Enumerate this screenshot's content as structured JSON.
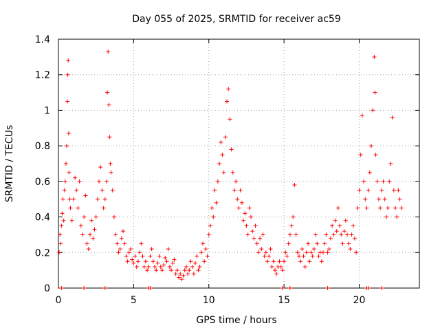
{
  "chart_data": {
    "type": "scatter",
    "title": "Day 055 of 2025, SRMTID for receiver ac59",
    "xlabel": "GPS time / hours",
    "ylabel": "SRMTID / TECUs",
    "xlim": [
      0,
      24
    ],
    "ylim": [
      0,
      1.4
    ],
    "xticks": [
      0,
      5,
      10,
      15,
      20
    ],
    "xtick_labels": [
      "0",
      "5",
      "10",
      "15",
      "20"
    ],
    "yticks": [
      0,
      0.2,
      0.4,
      0.6,
      0.8,
      1.0,
      1.2,
      1.4
    ],
    "ytick_labels": [
      "0",
      "0.2",
      "0.4",
      "0.6",
      "0.8",
      "1",
      "1.2",
      "1.4"
    ],
    "grid": true,
    "marker": "+",
    "color": "#ff0000",
    "series": [
      {
        "name": "SRMTID",
        "points": [
          [
            0.05,
            0.2
          ],
          [
            0.1,
            0.3
          ],
          [
            0.15,
            0.25
          ],
          [
            0.2,
            0.35
          ],
          [
            0.25,
            0.42
          ],
          [
            0.3,
            0.5
          ],
          [
            0.35,
            0.38
          ],
          [
            0.4,
            0.55
          ],
          [
            0.45,
            0.6
          ],
          [
            0.5,
            0.7
          ],
          [
            0.55,
            0.8
          ],
          [
            0.6,
            1.05
          ],
          [
            0.62,
            1.2
          ],
          [
            0.65,
            1.28
          ],
          [
            0.68,
            0.87
          ],
          [
            0.7,
            0.65
          ],
          [
            0.75,
            0.5
          ],
          [
            0.8,
            0.45
          ],
          [
            0.9,
            0.38
          ],
          [
            1.0,
            0.5
          ],
          [
            1.1,
            0.62
          ],
          [
            1.2,
            0.55
          ],
          [
            1.3,
            0.45
          ],
          [
            1.4,
            0.6
          ],
          [
            1.5,
            0.35
          ],
          [
            1.6,
            0.3
          ],
          [
            1.7,
            0.4
          ],
          [
            1.8,
            0.52
          ],
          [
            1.9,
            0.25
          ],
          [
            2.0,
            0.22
          ],
          [
            2.1,
            0.3
          ],
          [
            2.2,
            0.38
          ],
          [
            2.3,
            0.28
          ],
          [
            2.4,
            0.33
          ],
          [
            2.5,
            0.4
          ],
          [
            2.6,
            0.5
          ],
          [
            2.7,
            0.6
          ],
          [
            2.8,
            0.68
          ],
          [
            2.9,
            0.55
          ],
          [
            3.0,
            0.45
          ],
          [
            3.1,
            0.5
          ],
          [
            3.2,
            0.6
          ],
          [
            3.25,
            1.1
          ],
          [
            3.3,
            1.33
          ],
          [
            3.35,
            1.03
          ],
          [
            3.4,
            0.85
          ],
          [
            3.45,
            0.7
          ],
          [
            3.5,
            0.65
          ],
          [
            3.6,
            0.55
          ],
          [
            3.7,
            0.4
          ],
          [
            3.8,
            0.3
          ],
          [
            3.9,
            0.25
          ],
          [
            4.0,
            0.2
          ],
          [
            4.1,
            0.22
          ],
          [
            4.2,
            0.28
          ],
          [
            4.3,
            0.32
          ],
          [
            4.4,
            0.25
          ],
          [
            4.5,
            0.18
          ],
          [
            4.6,
            0.15
          ],
          [
            4.7,
            0.2
          ],
          [
            4.8,
            0.22
          ],
          [
            4.9,
            0.16
          ],
          [
            5.0,
            0.14
          ],
          [
            5.1,
            0.18
          ],
          [
            5.2,
            0.12
          ],
          [
            5.3,
            0.15
          ],
          [
            5.4,
            0.2
          ],
          [
            5.5,
            0.25
          ],
          [
            5.6,
            0.18
          ],
          [
            5.7,
            0.12
          ],
          [
            5.8,
            0.15
          ],
          [
            5.9,
            0.1
          ],
          [
            6.0,
            0.12
          ],
          [
            6.1,
            0.18
          ],
          [
            6.2,
            0.22
          ],
          [
            6.3,
            0.15
          ],
          [
            6.4,
            0.12
          ],
          [
            6.5,
            0.1
          ],
          [
            6.6,
            0.14
          ],
          [
            6.7,
            0.18
          ],
          [
            6.8,
            0.12
          ],
          [
            6.9,
            0.1
          ],
          [
            7.0,
            0.13
          ],
          [
            7.1,
            0.17
          ],
          [
            7.2,
            0.15
          ],
          [
            7.3,
            0.22
          ],
          [
            7.4,
            0.12
          ],
          [
            7.5,
            0.1
          ],
          [
            7.6,
            0.14
          ],
          [
            7.7,
            0.16
          ],
          [
            7.8,
            0.08
          ],
          [
            7.9,
            0.1
          ],
          [
            8.0,
            0.06
          ],
          [
            8.1,
            0.08
          ],
          [
            8.2,
            0.05
          ],
          [
            8.3,
            0.07
          ],
          [
            8.4,
            0.1
          ],
          [
            8.5,
            0.12
          ],
          [
            8.6,
            0.08
          ],
          [
            8.7,
            0.1
          ],
          [
            8.8,
            0.15
          ],
          [
            8.9,
            0.12
          ],
          [
            9.0,
            0.08
          ],
          [
            9.1,
            0.14
          ],
          [
            9.2,
            0.18
          ],
          [
            9.3,
            0.1
          ],
          [
            9.4,
            0.12
          ],
          [
            9.5,
            0.2
          ],
          [
            9.6,
            0.25
          ],
          [
            9.7,
            0.15
          ],
          [
            9.8,
            0.22
          ],
          [
            9.9,
            0.18
          ],
          [
            10.0,
            0.3
          ],
          [
            10.1,
            0.35
          ],
          [
            10.2,
            0.45
          ],
          [
            10.3,
            0.4
          ],
          [
            10.4,
            0.55
          ],
          [
            10.5,
            0.48
          ],
          [
            10.6,
            0.6
          ],
          [
            10.7,
            0.7
          ],
          [
            10.8,
            0.82
          ],
          [
            10.9,
            0.75
          ],
          [
            11.0,
            0.65
          ],
          [
            11.1,
            0.85
          ],
          [
            11.2,
            1.05
          ],
          [
            11.3,
            1.12
          ],
          [
            11.4,
            0.95
          ],
          [
            11.5,
            0.78
          ],
          [
            11.6,
            0.65
          ],
          [
            11.7,
            0.55
          ],
          [
            11.8,
            0.6
          ],
          [
            11.9,
            0.5
          ],
          [
            12.0,
            0.45
          ],
          [
            12.1,
            0.55
          ],
          [
            12.2,
            0.48
          ],
          [
            12.3,
            0.38
          ],
          [
            12.4,
            0.42
          ],
          [
            12.5,
            0.35
          ],
          [
            12.6,
            0.3
          ],
          [
            12.7,
            0.45
          ],
          [
            12.8,
            0.4
          ],
          [
            12.9,
            0.32
          ],
          [
            13.0,
            0.28
          ],
          [
            13.1,
            0.35
          ],
          [
            13.2,
            0.25
          ],
          [
            13.3,
            0.2
          ],
          [
            13.4,
            0.28
          ],
          [
            13.5,
            0.22
          ],
          [
            13.6,
            0.3
          ],
          [
            13.7,
            0.18
          ],
          [
            13.8,
            0.2
          ],
          [
            13.9,
            0.15
          ],
          [
            14.0,
            0.18
          ],
          [
            14.1,
            0.22
          ],
          [
            14.2,
            0.12
          ],
          [
            14.3,
            0.15
          ],
          [
            14.4,
            0.1
          ],
          [
            14.5,
            0.08
          ],
          [
            14.6,
            0.12
          ],
          [
            14.7,
            0.15
          ],
          [
            14.8,
            0.12
          ],
          [
            14.9,
            0.1
          ],
          [
            15.0,
            0.15
          ],
          [
            15.1,
            0.2
          ],
          [
            15.2,
            0.18
          ],
          [
            15.3,
            0.25
          ],
          [
            15.4,
            0.3
          ],
          [
            15.5,
            0.35
          ],
          [
            15.6,
            0.4
          ],
          [
            15.7,
            0.58
          ],
          [
            15.8,
            0.3
          ],
          [
            15.9,
            0.2
          ],
          [
            16.0,
            0.18
          ],
          [
            16.1,
            0.15
          ],
          [
            16.2,
            0.22
          ],
          [
            16.3,
            0.18
          ],
          [
            16.4,
            0.12
          ],
          [
            16.5,
            0.2
          ],
          [
            16.6,
            0.25
          ],
          [
            16.7,
            0.15
          ],
          [
            16.8,
            0.2
          ],
          [
            16.9,
            0.18
          ],
          [
            17.0,
            0.22
          ],
          [
            17.1,
            0.3
          ],
          [
            17.2,
            0.25
          ],
          [
            17.3,
            0.18
          ],
          [
            17.4,
            0.2
          ],
          [
            17.5,
            0.15
          ],
          [
            17.6,
            0.2
          ],
          [
            17.7,
            0.25
          ],
          [
            17.8,
            0.3
          ],
          [
            17.9,
            0.2
          ],
          [
            18.0,
            0.22
          ],
          [
            18.1,
            0.28
          ],
          [
            18.2,
            0.35
          ],
          [
            18.3,
            0.3
          ],
          [
            18.4,
            0.38
          ],
          [
            18.5,
            0.32
          ],
          [
            18.6,
            0.45
          ],
          [
            18.7,
            0.35
          ],
          [
            18.8,
            0.3
          ],
          [
            18.9,
            0.25
          ],
          [
            19.0,
            0.32
          ],
          [
            19.1,
            0.38
          ],
          [
            19.2,
            0.3
          ],
          [
            19.3,
            0.25
          ],
          [
            19.4,
            0.22
          ],
          [
            19.5,
            0.3
          ],
          [
            19.6,
            0.35
          ],
          [
            19.7,
            0.28
          ],
          [
            19.8,
            0.2
          ],
          [
            19.9,
            0.45
          ],
          [
            20.0,
            0.55
          ],
          [
            20.1,
            0.75
          ],
          [
            20.2,
            0.97
          ],
          [
            20.3,
            0.6
          ],
          [
            20.4,
            0.5
          ],
          [
            20.5,
            0.45
          ],
          [
            20.6,
            0.55
          ],
          [
            20.7,
            0.65
          ],
          [
            20.8,
            0.8
          ],
          [
            20.9,
            1.0
          ],
          [
            21.0,
            1.3
          ],
          [
            21.05,
            1.1
          ],
          [
            21.1,
            0.75
          ],
          [
            21.2,
            0.6
          ],
          [
            21.3,
            0.5
          ],
          [
            21.4,
            0.45
          ],
          [
            21.5,
            0.55
          ],
          [
            21.6,
            0.6
          ],
          [
            21.7,
            0.5
          ],
          [
            21.8,
            0.4
          ],
          [
            21.9,
            0.45
          ],
          [
            22.0,
            0.6
          ],
          [
            22.1,
            0.7
          ],
          [
            22.2,
            0.96
          ],
          [
            22.3,
            0.55
          ],
          [
            22.4,
            0.45
          ],
          [
            22.5,
            0.4
          ],
          [
            22.6,
            0.55
          ],
          [
            22.7,
            0.5
          ],
          [
            22.8,
            0.45
          ]
        ]
      },
      {
        "name": "zero",
        "points": [
          [
            0.2,
            0
          ],
          [
            1.7,
            0
          ],
          [
            3.1,
            0
          ],
          [
            6.0,
            0
          ],
          [
            6.1,
            0
          ],
          [
            14.9,
            0
          ],
          [
            15.4,
            0
          ],
          [
            17.9,
            0
          ],
          [
            20.5,
            0
          ],
          [
            20.6,
            0
          ],
          [
            21.5,
            0
          ]
        ]
      }
    ]
  }
}
